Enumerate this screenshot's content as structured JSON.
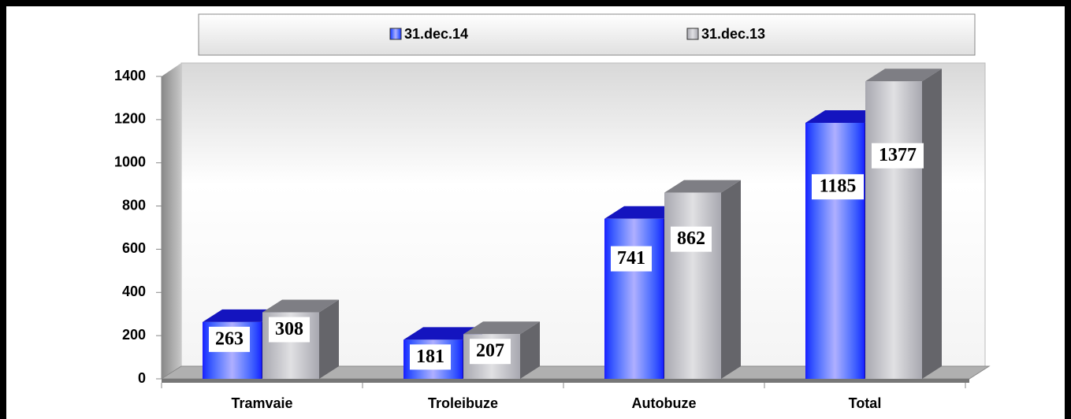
{
  "chart_data": {
    "type": "bar3d",
    "categories": [
      "Tramvaie",
      "Troleibuze",
      "Autobuze",
      "Total"
    ],
    "series": [
      {
        "name": "31.dec.14",
        "color": "#1a1aff",
        "values": [
          263,
          181,
          741,
          1185
        ]
      },
      {
        "name": "31.dec.13",
        "color": "#a8a8b0",
        "values": [
          308,
          207,
          862,
          1377
        ]
      }
    ],
    "ylim": [
      0,
      1400
    ],
    "yticks": [
      0,
      200,
      400,
      600,
      800,
      1000,
      1200,
      1400
    ],
    "legend": "top"
  }
}
